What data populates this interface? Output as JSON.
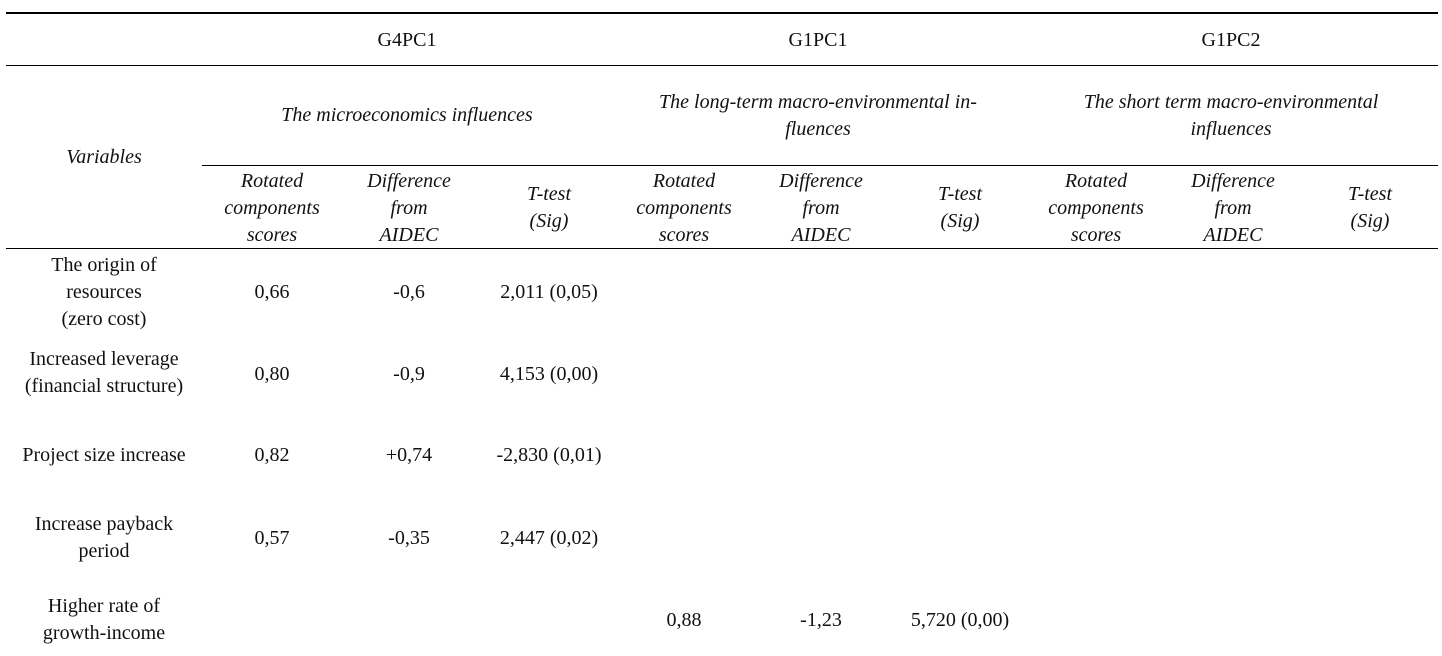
{
  "groups": [
    {
      "code": "G4PC1",
      "title_line1": "The microeconomics influences",
      "title_line2": ""
    },
    {
      "code": "G1PC1",
      "title_line1": "The long-term macro-environmental in-",
      "title_line2": "fluences"
    },
    {
      "code": "G1PC2",
      "title_line1": "The short term macro-environmental",
      "title_line2": "influences"
    }
  ],
  "variables_header": "Variables",
  "subheaders": {
    "rotated": [
      "Rotated",
      "components",
      "scores"
    ],
    "difference": [
      "Difference",
      "from",
      "AIDEC"
    ],
    "ttest": [
      "T-test",
      "(Sig)"
    ]
  },
  "rows": [
    {
      "variable": [
        "The origin of",
        "resources",
        "(zero cost)"
      ],
      "g4_score": "0,66",
      "g4_diff": "-0,6",
      "g4_t": "2,011 (0,05)",
      "g1_score": "",
      "g1_diff": "",
      "g1_t": ""
    },
    {
      "variable": [
        "Increased leverage",
        "(financial structure)"
      ],
      "g4_score": "0,80",
      "g4_diff": "-0,9",
      "g4_t": "4,153 (0,00)",
      "g1_score": "",
      "g1_diff": "",
      "g1_t": ""
    },
    {
      "variable": [
        "Project size increase"
      ],
      "g4_score": "0,82",
      "g4_diff": "+0,74",
      "g4_t": "-2,830 (0,01)",
      "g1_score": "",
      "g1_diff": "",
      "g1_t": ""
    },
    {
      "variable": [
        "Increase payback",
        "period"
      ],
      "g4_score": "0,57",
      "g4_diff": "-0,35",
      "g4_t": "2,447 (0,02)",
      "g1_score": "",
      "g1_diff": "",
      "g1_t": ""
    },
    {
      "variable": [
        "Higher rate of",
        "growth-income"
      ],
      "g4_score": "",
      "g4_diff": "",
      "g4_t": "",
      "g1_score": "0,88",
      "g1_diff": "-1,23",
      "g1_t": "5,720 (0,00)"
    }
  ]
}
